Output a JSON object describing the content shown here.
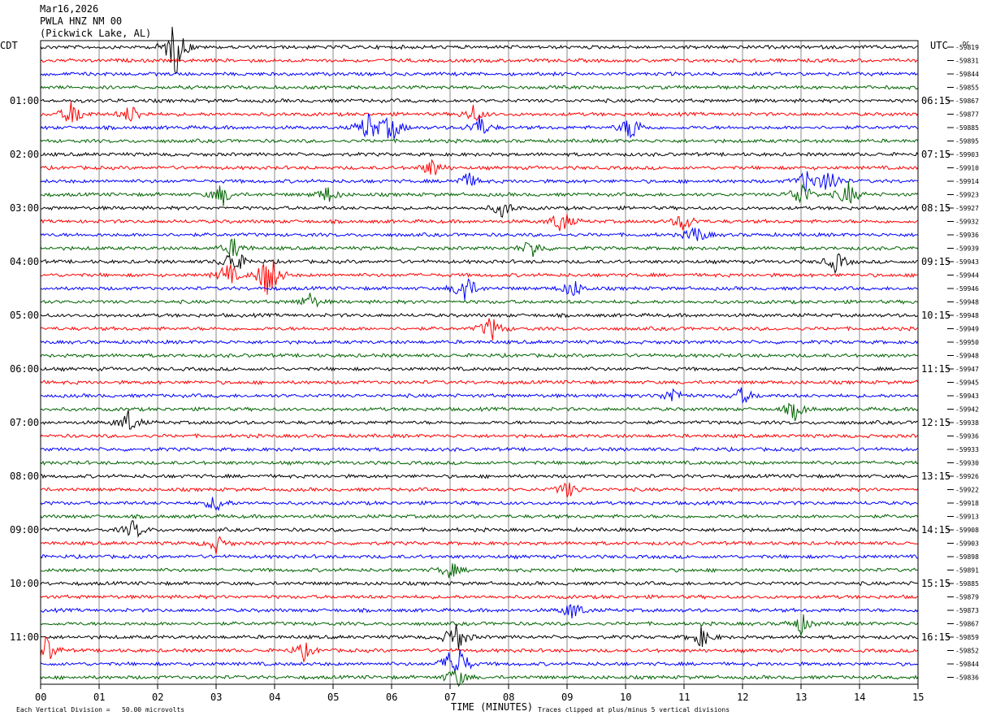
{
  "header": {
    "date": "Mar16,2026",
    "station": "PWLA HNZ NM 00",
    "location": "(Pickwick Lake, AL)"
  },
  "left_timezone": "CDT",
  "right_timezone": "UTC",
  "dc_label": "DC",
  "x_axis_title": "TIME (MINUTES)",
  "footer_left": "Each Vertical Division =   50.00 microvolts",
  "footer_right": "Traces clipped at plus/minus 5 vertical divisions",
  "trace_colors": [
    "#000000",
    "#ff0000",
    "#0000ff",
    "#006400"
  ],
  "chart_data": {
    "type": "line",
    "subtype": "helicorder",
    "x_range": [
      0,
      15
    ],
    "x_ticks": [
      "00",
      "01",
      "02",
      "03",
      "04",
      "05",
      "06",
      "07",
      "08",
      "09",
      "10",
      "11",
      "12",
      "13",
      "14",
      "15"
    ],
    "left_time_labels": [
      "01:00",
      "02:00",
      "03:00",
      "04:00",
      "05:00",
      "06:00",
      "07:00",
      "08:00",
      "09:00",
      "10:00",
      "11:00"
    ],
    "right_time_labels": [
      "06:15",
      "07:15",
      "08:15",
      "09:15",
      "10:15",
      "11:15",
      "12:15",
      "13:15",
      "14:15",
      "15:15",
      "16:15"
    ],
    "dc_offsets": [
      "-59819",
      "-59831",
      "-59844",
      "-59855",
      "-59867",
      "-59877",
      "-59885",
      "-59895",
      "-59903",
      "-59910",
      "-59914",
      "-59923",
      "-59927",
      "-59932",
      "-59936",
      "-59939",
      "-59943",
      "-59944",
      "-59946",
      "-59948",
      "-59948",
      "-59949",
      "-59950",
      "-59948",
      "-59947",
      "-59945",
      "-59943",
      "-59942",
      "-59938",
      "-59936",
      "-59933",
      "-59930",
      "-59926",
      "-59922",
      "-59918",
      "-59913",
      "-59908",
      "-59903",
      "-59898",
      "-59891",
      "-59885",
      "-59879",
      "-59873",
      "-59867",
      "-59859",
      "-59852",
      "-59844",
      "-59836"
    ],
    "events": [
      {
        "trace": 0,
        "minute": 2.3,
        "amplitude": 1.0
      },
      {
        "trace": 5,
        "minute": 0.55,
        "amplitude": 0.5
      },
      {
        "trace": 5,
        "minute": 1.55,
        "amplitude": 0.35
      },
      {
        "trace": 5,
        "minute": 7.4,
        "amplitude": 0.3
      },
      {
        "trace": 6,
        "minute": 5.6,
        "amplitude": 0.55
      },
      {
        "trace": 6,
        "minute": 6.0,
        "amplitude": 0.5
      },
      {
        "trace": 6,
        "minute": 7.5,
        "amplitude": 0.4
      },
      {
        "trace": 6,
        "minute": 10.1,
        "amplitude": 0.5
      },
      {
        "trace": 9,
        "minute": 6.7,
        "amplitude": 0.35
      },
      {
        "trace": 10,
        "minute": 7.3,
        "amplitude": 0.3
      },
      {
        "trace": 10,
        "minute": 13.1,
        "amplitude": 0.4
      },
      {
        "trace": 10,
        "minute": 13.5,
        "amplitude": 0.45
      },
      {
        "trace": 11,
        "minute": 3.1,
        "amplitude": 0.4
      },
      {
        "trace": 11,
        "minute": 4.9,
        "amplitude": 0.3
      },
      {
        "trace": 11,
        "minute": 13.0,
        "amplitude": 0.5
      },
      {
        "trace": 11,
        "minute": 13.8,
        "amplitude": 0.45
      },
      {
        "trace": 12,
        "minute": 7.9,
        "amplitude": 0.3
      },
      {
        "trace": 13,
        "minute": 8.9,
        "amplitude": 0.45
      },
      {
        "trace": 13,
        "minute": 11.0,
        "amplitude": 0.35
      },
      {
        "trace": 14,
        "minute": 11.2,
        "amplitude": 0.35
      },
      {
        "trace": 15,
        "minute": 3.3,
        "amplitude": 0.35
      },
      {
        "trace": 15,
        "minute": 8.4,
        "amplitude": 0.35
      },
      {
        "trace": 16,
        "minute": 3.3,
        "amplitude": 0.55
      },
      {
        "trace": 16,
        "minute": 13.6,
        "amplitude": 0.35
      },
      {
        "trace": 17,
        "minute": 3.9,
        "amplitude": 1.0
      },
      {
        "trace": 17,
        "minute": 3.2,
        "amplitude": 0.45
      },
      {
        "trace": 18,
        "minute": 7.25,
        "amplitude": 0.6
      },
      {
        "trace": 18,
        "minute": 9.1,
        "amplitude": 0.35
      },
      {
        "trace": 19,
        "minute": 4.6,
        "amplitude": 0.3
      },
      {
        "trace": 21,
        "minute": 7.7,
        "amplitude": 0.45
      },
      {
        "trace": 26,
        "minute": 10.8,
        "amplitude": 0.3
      },
      {
        "trace": 26,
        "minute": 12.0,
        "amplitude": 0.3
      },
      {
        "trace": 27,
        "minute": 12.9,
        "amplitude": 0.35
      },
      {
        "trace": 28,
        "minute": 1.5,
        "amplitude": 0.4
      },
      {
        "trace": 33,
        "minute": 9.0,
        "amplitude": 0.3
      },
      {
        "trace": 34,
        "minute": 3.0,
        "amplitude": 0.3
      },
      {
        "trace": 36,
        "minute": 1.6,
        "amplitude": 0.35
      },
      {
        "trace": 37,
        "minute": 3.0,
        "amplitude": 0.3
      },
      {
        "trace": 39,
        "minute": 7.0,
        "amplitude": 0.3
      },
      {
        "trace": 42,
        "minute": 9.1,
        "amplitude": 0.35
      },
      {
        "trace": 43,
        "minute": 13.0,
        "amplitude": 0.35
      },
      {
        "trace": 44,
        "minute": 11.3,
        "amplitude": 0.35
      },
      {
        "trace": 44,
        "minute": 7.1,
        "amplitude": 0.6
      },
      {
        "trace": 45,
        "minute": 0.1,
        "amplitude": 0.5
      },
      {
        "trace": 45,
        "minute": 4.5,
        "amplitude": 0.3
      },
      {
        "trace": 46,
        "minute": 7.1,
        "amplitude": 1.0
      },
      {
        "trace": 47,
        "minute": 7.1,
        "amplitude": 0.4
      }
    ]
  }
}
